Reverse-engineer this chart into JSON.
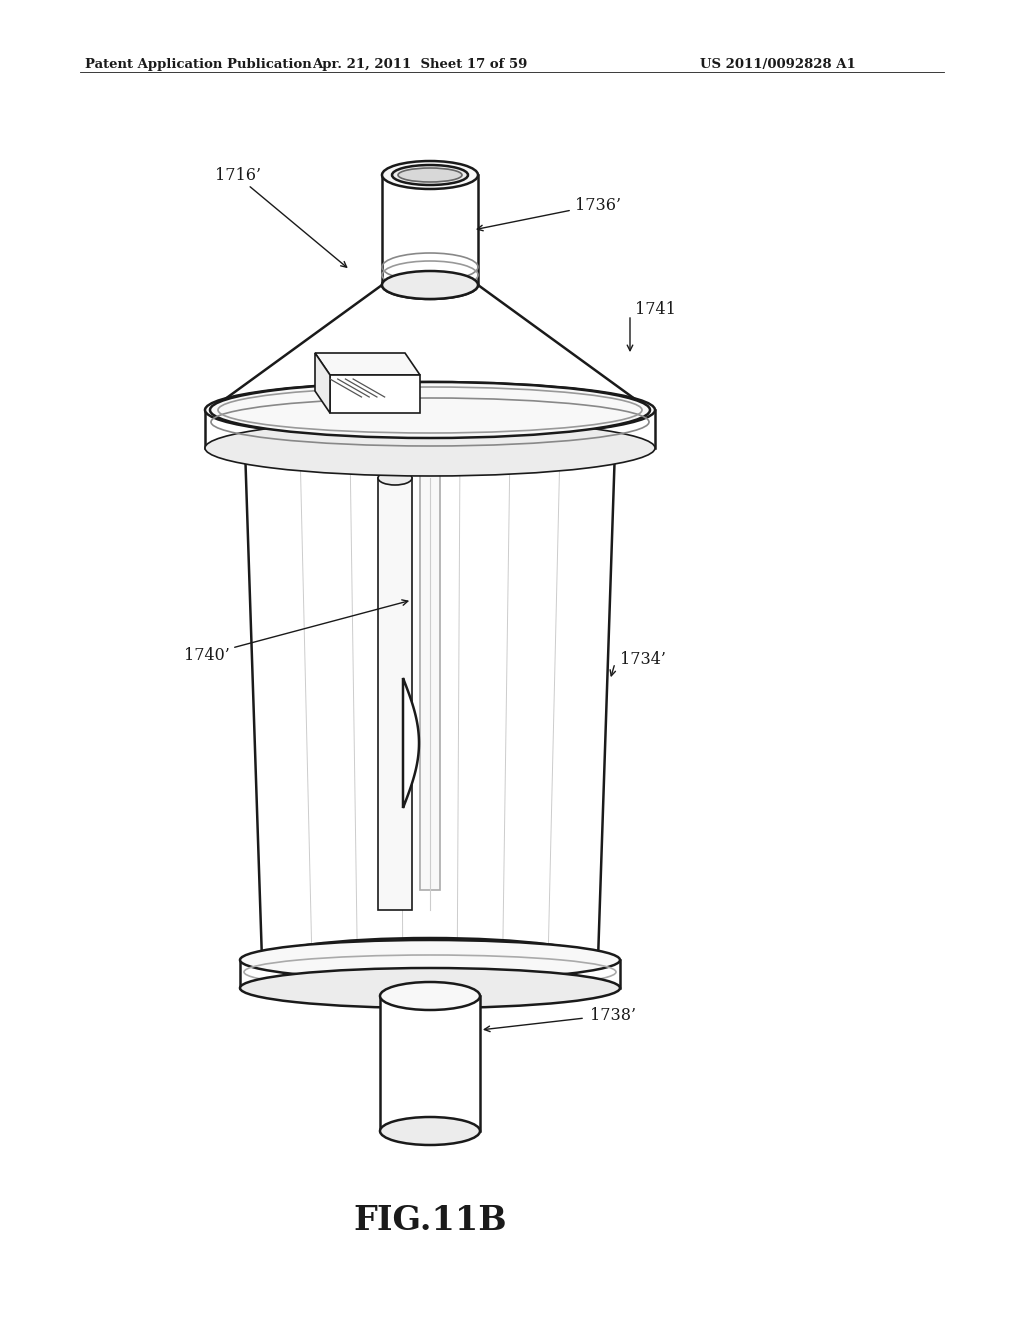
{
  "header_left": "Patent Application Publication",
  "header_center": "Apr. 21, 2011  Sheet 17 of 59",
  "header_right": "US 2011/0092828 A1",
  "figure_label": "FIG.11B",
  "labels": {
    "1716_prime": "1716’",
    "1736_prime": "1736’",
    "1741": "1741",
    "1740_prime": "1740’",
    "1734_prime": "1734’",
    "1738_prime": "1738’"
  },
  "background_color": "#ffffff",
  "line_color": "#1a1a1a",
  "fill_white": "#ffffff",
  "fill_light": "#f8f8f8",
  "fill_mid": "#ececec",
  "fill_dark": "#d8d8d8"
}
